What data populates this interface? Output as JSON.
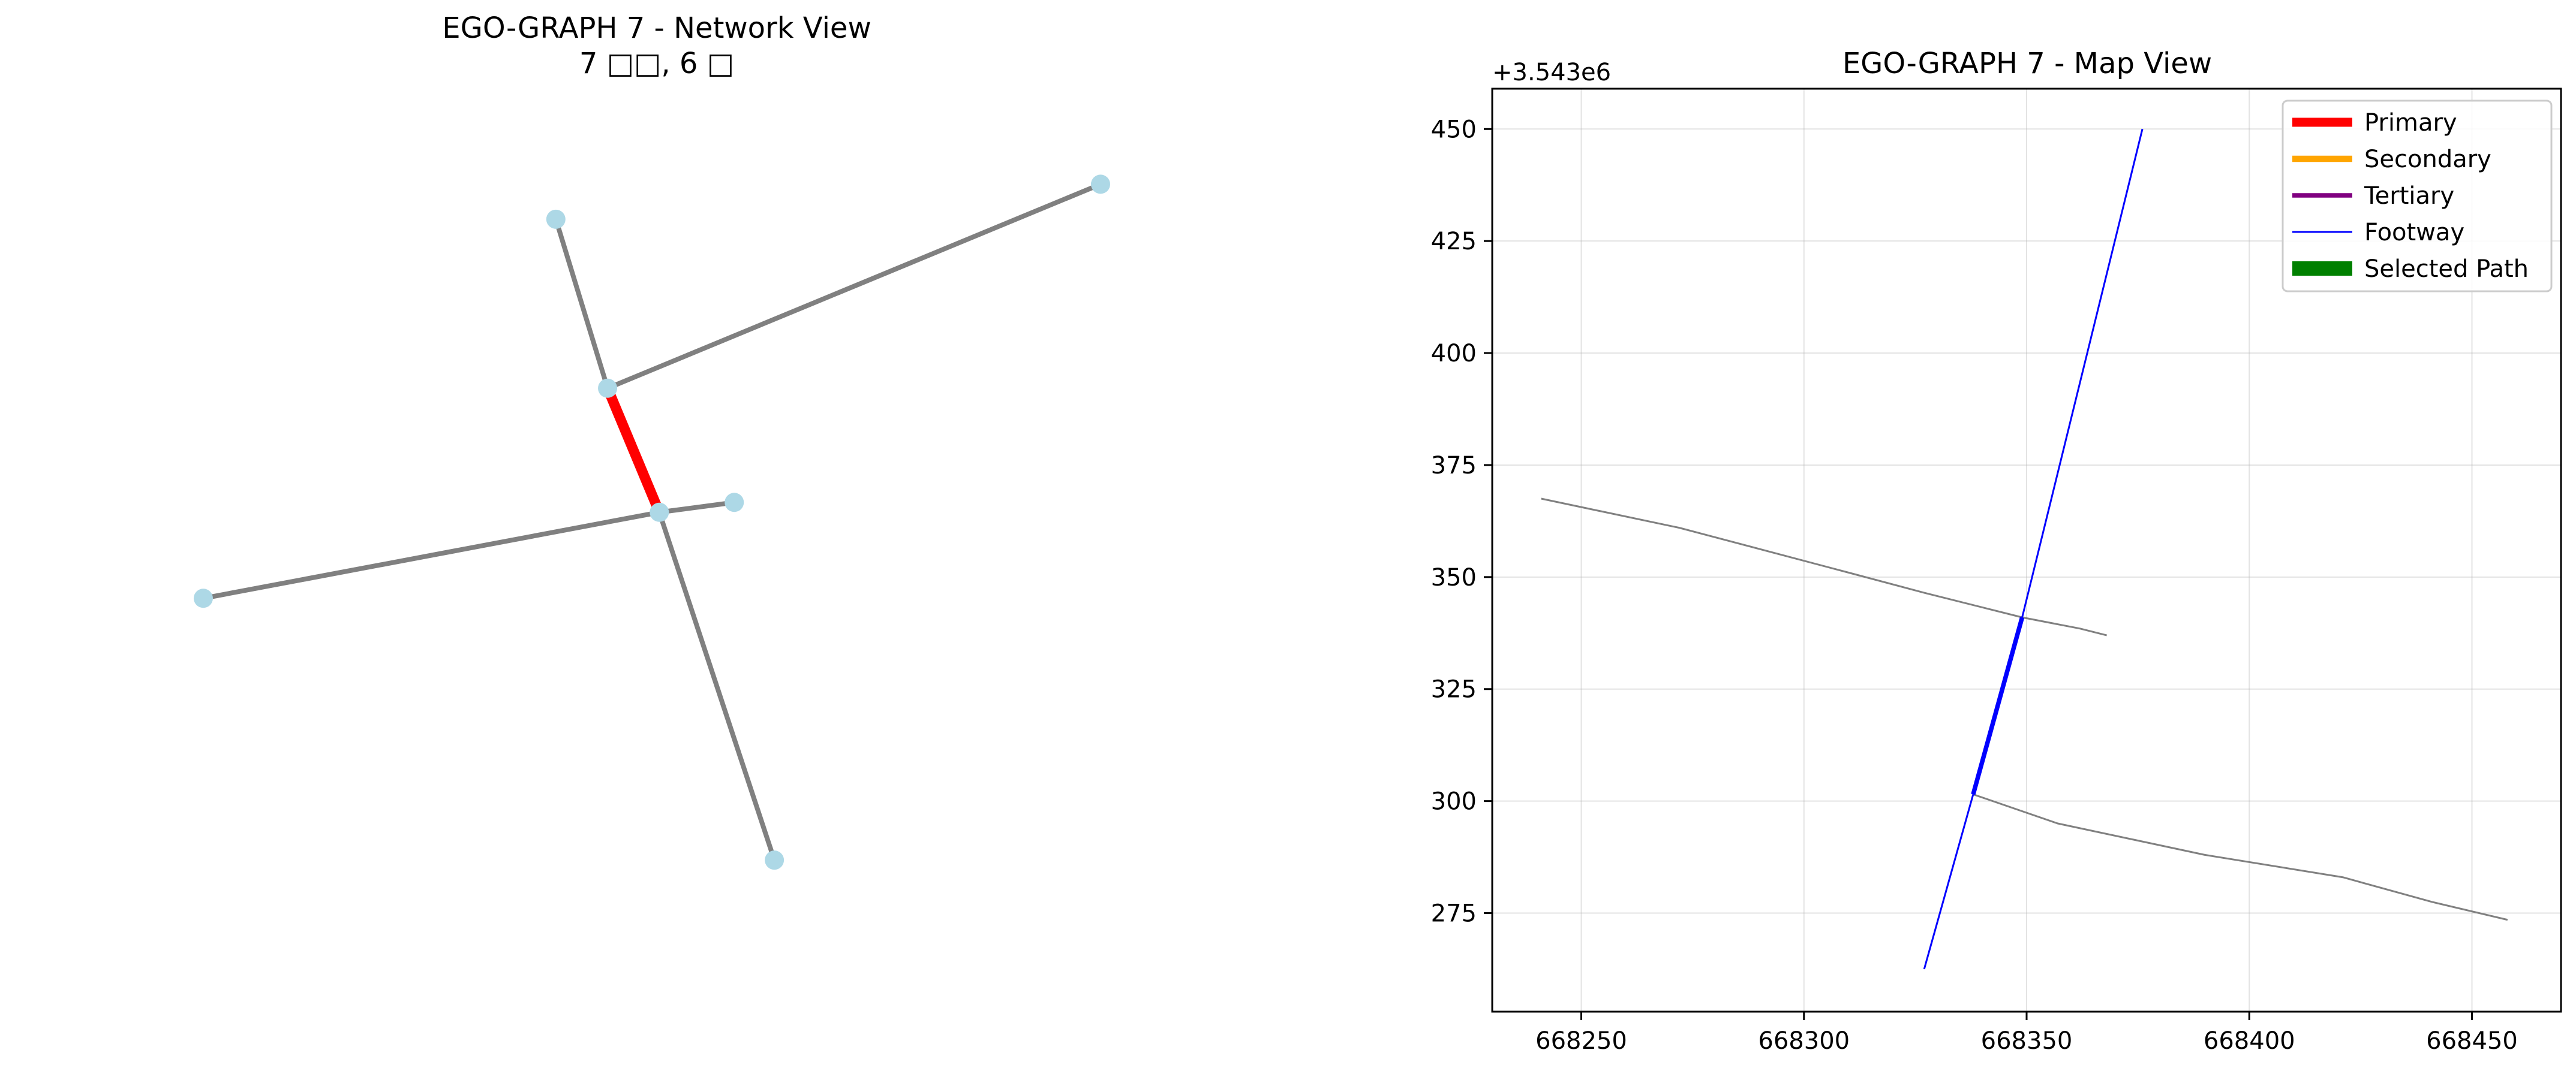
{
  "chart_data": [
    {
      "type": "network",
      "title": "EGO-GRAPH 7 - Network View",
      "subtitle": "7 □□, 6 □",
      "node_color": "#add8e6",
      "edge_color": "#808080",
      "highlight_color": "#ff0000",
      "nodes": [
        {
          "id": "n0",
          "x": 0.612,
          "y": 0.908
        },
        {
          "id": "n1",
          "x": 0.071,
          "y": 0.564
        },
        {
          "id": "n2",
          "x": 0.503,
          "y": 0.451
        },
        {
          "id": "n3",
          "x": 0.574,
          "y": 0.438
        },
        {
          "id": "n4",
          "x": 0.454,
          "y": 0.288
        },
        {
          "id": "n5",
          "x": 0.921,
          "y": 0.02
        },
        {
          "id": "n6",
          "x": 0.405,
          "y": 0.066
        }
      ],
      "edges": [
        {
          "from": "n0",
          "to": "n2",
          "highlight": false
        },
        {
          "from": "n1",
          "to": "n2",
          "highlight": false
        },
        {
          "from": "n2",
          "to": "n3",
          "highlight": false
        },
        {
          "from": "n2",
          "to": "n4",
          "highlight": true
        },
        {
          "from": "n4",
          "to": "n5",
          "highlight": false
        },
        {
          "from": "n4",
          "to": "n6",
          "highlight": false
        }
      ]
    },
    {
      "type": "line",
      "title": "EGO-GRAPH 7 - Map View",
      "y_offset_label": "+3.543e6",
      "xlim": [
        668230,
        668470
      ],
      "ylim": [
        253,
        459
      ],
      "x_ticks": [
        668250,
        668300,
        668350,
        668400,
        668450
      ],
      "x_tick_labels": [
        "668250",
        "668300",
        "668350",
        "668400",
        "668450"
      ],
      "y_ticks": [
        275,
        300,
        325,
        350,
        375,
        400,
        425,
        450
      ],
      "y_tick_labels": [
        "275",
        "300",
        "325",
        "350",
        "375",
        "400",
        "425",
        "450"
      ],
      "grid": true,
      "legend_position": "top-right",
      "legend": [
        {
          "label": "Primary",
          "color": "#ff0000",
          "width": 5
        },
        {
          "label": "Secondary",
          "color": "#ffa500",
          "width": 3.5
        },
        {
          "label": "Tertiary",
          "color": "#800080",
          "width": 2.5
        },
        {
          "label": "Footway",
          "color": "#0000ff",
          "width": 1
        },
        {
          "label": "Selected Path",
          "color": "#008000",
          "width": 8
        }
      ],
      "series": [
        {
          "kind": "road",
          "color": "#808080",
          "width": 1,
          "points": [
            [
              668241,
              367.5
            ],
            [
              668272,
              361
            ],
            [
              668310,
              351
            ],
            [
              668327,
              346.5
            ],
            [
              668349,
              341
            ],
            [
              668362,
              338.5
            ],
            [
              668368,
              337
            ]
          ]
        },
        {
          "kind": "road",
          "color": "#808080",
          "width": 1,
          "points": [
            [
              668338,
              301.5
            ],
            [
              668357,
              295
            ],
            [
              668390,
              288
            ],
            [
              668421,
              283
            ],
            [
              668441,
              277.5
            ],
            [
              668458,
              273.5
            ]
          ]
        },
        {
          "kind": "footway",
          "color": "#0000ff",
          "width": 1,
          "points": [
            [
              668376,
              450
            ],
            [
              668349,
              341
            ]
          ]
        },
        {
          "kind": "footway",
          "color": "#0000ff",
          "width": 1,
          "points": [
            [
              668338,
              301.5
            ],
            [
              668327,
              262.5
            ]
          ]
        },
        {
          "kind": "selected-footway",
          "color": "#0000ff",
          "width": 2.5,
          "points": [
            [
              668349,
              341
            ],
            [
              668338,
              301.5
            ]
          ]
        }
      ]
    }
  ]
}
